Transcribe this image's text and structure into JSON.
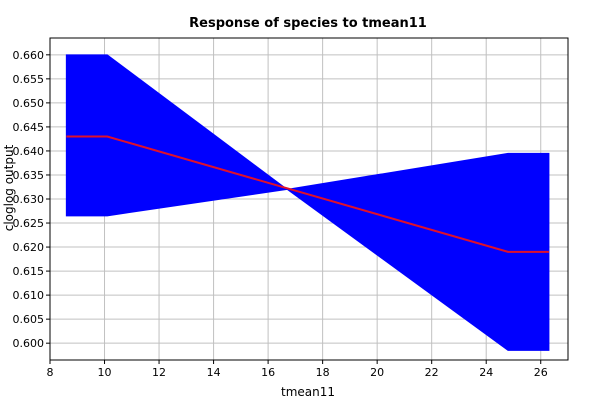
{
  "chart_data": {
    "type": "area",
    "title": "Response of species to tmean11",
    "xlabel": "tmean11",
    "ylabel": "cloglog output",
    "xlim": [
      8,
      27
    ],
    "ylim": [
      0.5965,
      0.6635
    ],
    "x_ticks": [
      8,
      10,
      12,
      14,
      16,
      18,
      20,
      22,
      24,
      26
    ],
    "y_ticks": [
      0.6,
      0.605,
      0.61,
      0.615,
      0.62,
      0.625,
      0.63,
      0.635,
      0.64,
      0.645,
      0.65,
      0.655,
      0.66
    ],
    "x_tick_labels": [
      "8",
      "10",
      "12",
      "14",
      "16",
      "18",
      "20",
      "22",
      "24",
      "26"
    ],
    "y_tick_labels": [
      "0.600",
      "0.605",
      "0.610",
      "0.615",
      "0.620",
      "0.625",
      "0.630",
      "0.635",
      "0.640",
      "0.645",
      "0.650",
      "0.655",
      "0.660"
    ],
    "grid": true,
    "series": [
      {
        "kind": "band",
        "color": "#0000ff",
        "upper": [
          [
            8.6,
            0.66
          ],
          [
            10.1,
            0.66
          ],
          [
            16.7,
            0.632
          ],
          [
            24.8,
            0.6395
          ],
          [
            26.3,
            0.6395
          ]
        ],
        "lower": [
          [
            8.6,
            0.6265
          ],
          [
            10.1,
            0.6265
          ],
          [
            16.7,
            0.632
          ],
          [
            24.8,
            0.5985
          ],
          [
            26.3,
            0.5985
          ]
        ]
      },
      {
        "kind": "line",
        "color": "#e0102a",
        "points": [
          [
            8.6,
            0.643
          ],
          [
            10.1,
            0.643
          ],
          [
            24.8,
            0.619
          ],
          [
            26.3,
            0.619
          ]
        ]
      }
    ]
  },
  "colors": {
    "band": "#0000ff",
    "line": "#e0102a",
    "grid": "#c0c0c0",
    "frame": "#000000"
  }
}
